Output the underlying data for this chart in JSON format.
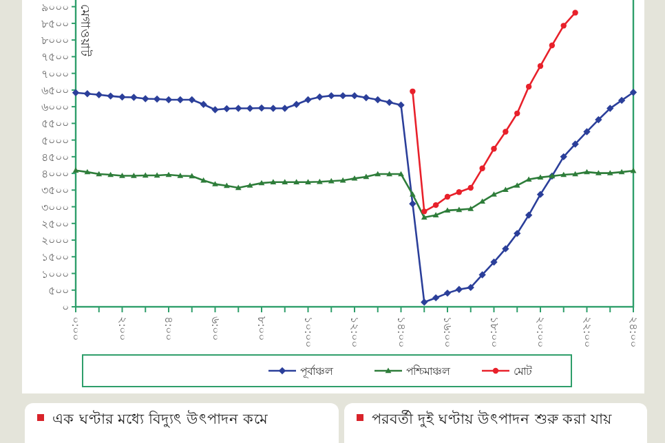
{
  "chart_data": {
    "type": "line",
    "ylabel": "মেগাওয়াট",
    "legend": "bottom",
    "xlim": [
      0,
      24
    ],
    "ylim": [
      0,
      9200
    ],
    "xticks": [
      {
        "value": 0,
        "label": "০:০০"
      },
      {
        "value": 1,
        "label": null
      },
      {
        "value": 2,
        "label": "২:০০"
      },
      {
        "value": 3,
        "label": null
      },
      {
        "value": 4,
        "label": "৪:০০"
      },
      {
        "value": 5,
        "label": null
      },
      {
        "value": 6,
        "label": "৬:০০"
      },
      {
        "value": 7,
        "label": null
      },
      {
        "value": 8,
        "label": "৮:০০"
      },
      {
        "value": 9,
        "label": null
      },
      {
        "value": 10,
        "label": "১০:০০"
      },
      {
        "value": 11,
        "label": null
      },
      {
        "value": 12,
        "label": "১২:০০"
      },
      {
        "value": 13,
        "label": null
      },
      {
        "value": 14,
        "label": "১৪:০০"
      },
      {
        "value": 15,
        "label": null
      },
      {
        "value": 16,
        "label": "১৬:০০"
      },
      {
        "value": 17,
        "label": null
      },
      {
        "value": 18,
        "label": "১৮:০০"
      },
      {
        "value": 19,
        "label": null
      },
      {
        "value": 20,
        "label": "২০:০০"
      },
      {
        "value": 21,
        "label": null
      },
      {
        "value": 22,
        "label": "২২:০০"
      },
      {
        "value": 23,
        "label": null
      },
      {
        "value": 24,
        "label": "২৪:০০"
      }
    ],
    "yticks": [
      {
        "value": 0,
        "label": "০"
      },
      {
        "value": 500,
        "label": "৫০০"
      },
      {
        "value": 1000,
        "label": "১০০০"
      },
      {
        "value": 1500,
        "label": "১৫০০"
      },
      {
        "value": 2000,
        "label": "২০০০"
      },
      {
        "value": 2500,
        "label": "২৫০০"
      },
      {
        "value": 3000,
        "label": "৩০০০"
      },
      {
        "value": 3500,
        "label": "৩৫০০"
      },
      {
        "value": 4000,
        "label": "৪০০০"
      },
      {
        "value": 4500,
        "label": "৪৫০০"
      },
      {
        "value": 5000,
        "label": "৫০০০"
      },
      {
        "value": 5500,
        "label": "৫৫০০"
      },
      {
        "value": 6000,
        "label": "৬০০০"
      },
      {
        "value": 6500,
        "label": "৬৫০০"
      },
      {
        "value": 7000,
        "label": "৭০০০"
      },
      {
        "value": 7500,
        "label": "৭৫০০"
      },
      {
        "value": 8000,
        "label": "৮০০০"
      },
      {
        "value": 8500,
        "label": "৮৫০০"
      },
      {
        "value": 9000,
        "label": "৯০০০"
      }
    ],
    "x": [
      0,
      0.5,
      1,
      1.5,
      2,
      2.5,
      3,
      3.5,
      4,
      4.5,
      5,
      5.5,
      6,
      6.5,
      7,
      7.5,
      8,
      8.5,
      9,
      9.5,
      10,
      10.5,
      11,
      11.5,
      12,
      12.5,
      13,
      13.5,
      14,
      14.5,
      15,
      15.5,
      16,
      16.5,
      17,
      17.5,
      18,
      18.5,
      19,
      19.5,
      20,
      20.5,
      21,
      21.5,
      22,
      22.5,
      23,
      23.5,
      24
    ],
    "series": [
      {
        "name": "পূর্বাঞ্চল",
        "color": "#2b3f9a",
        "marker": "diamond",
        "values": [
          6420,
          6390,
          6360,
          6320,
          6290,
          6280,
          6240,
          6230,
          6210,
          6210,
          6210,
          6070,
          5910,
          5940,
          5950,
          5950,
          5960,
          5950,
          5950,
          6070,
          6210,
          6290,
          6330,
          6330,
          6330,
          6270,
          6210,
          6130,
          6050,
          3090,
          140,
          270,
          410,
          520,
          580,
          960,
          1340,
          1740,
          2200,
          2750,
          3370,
          3920,
          4500,
          4880,
          5250,
          5610,
          5950,
          6190,
          6430
        ]
      },
      {
        "name": "পশ্চিমাঞ্চল",
        "color": "#2e7d3a",
        "marker": "triangle",
        "values": [
          4090,
          4040,
          3980,
          3960,
          3930,
          3930,
          3940,
          3940,
          3960,
          3930,
          3920,
          3790,
          3680,
          3630,
          3570,
          3640,
          3710,
          3740,
          3740,
          3740,
          3740,
          3750,
          3770,
          3790,
          3850,
          3900,
          3980,
          3980,
          3980,
          3370,
          2680,
          2750,
          2890,
          2910,
          2940,
          3160,
          3370,
          3510,
          3640,
          3820,
          3880,
          3920,
          3960,
          3980,
          4040,
          4010,
          4010,
          4040,
          4080
        ]
      },
      {
        "name": "মোট",
        "color": "#e8212b",
        "marker": "circle",
        "x": [
          14.5,
          15,
          15.5,
          16,
          16.5,
          17,
          17.5,
          18,
          18.5,
          19,
          19.5,
          20,
          20.5,
          21,
          21.5
        ],
        "values": [
          6460,
          2860,
          3050,
          3300,
          3440,
          3570,
          4150,
          4740,
          5250,
          5800,
          6600,
          7220,
          7840,
          8430,
          8820
        ]
      }
    ],
    "annotations": [
      "এক ঘণ্টার মধ্যে বিদ্যুৎ উৎপাদন কমে",
      "পরবর্তী দুই ঘণ্টায় উৎপাদন শুরু করা যায়"
    ]
  }
}
